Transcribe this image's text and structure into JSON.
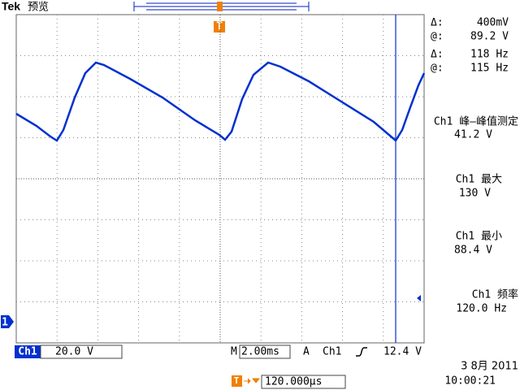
{
  "header": {
    "brand": "Tek",
    "mode": "预览"
  },
  "trigger_marker": "T",
  "channel_marker": "1",
  "cursors": [
    {
      "delta_label": "Δ:",
      "delta": "400mV",
      "at_label": "@:",
      "at": "89.2 V"
    },
    {
      "delta_label": "Δ:",
      "delta": "118 Hz",
      "at_label": "@:",
      "at": "115 Hz"
    }
  ],
  "measurements": [
    {
      "label": "Ch1 峰—峰值测定",
      "value": "41.2 V"
    },
    {
      "label": "Ch1 最大",
      "value": "130 V"
    },
    {
      "label": "Ch1 最小",
      "value": "88.4 V"
    },
    {
      "label": "Ch1 频率",
      "value": "120.0 Hz"
    }
  ],
  "status": {
    "channel": "Ch1",
    "scale": "20.0 V",
    "time_label": "M",
    "time_scale": "2.00ms",
    "trigger_label": "A",
    "trigger_source": "Ch1",
    "trigger_level": "12.4 V",
    "position_marker": "T",
    "position": "120.000µs",
    "date": "3 8月 2011",
    "time": "10:00:21"
  }
}
